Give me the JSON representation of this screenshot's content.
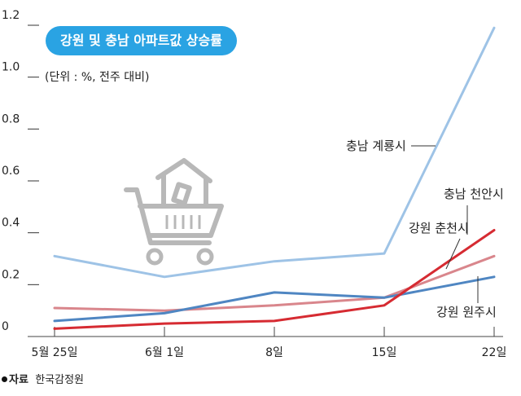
{
  "title": "강원 및 충남 아파트값 상승률",
  "unit_note": "(단위 : %, 전주 대비)",
  "source": {
    "label": "자료",
    "text": "한국감정원"
  },
  "cart_icon": "shopping-cart-with-house",
  "chart_data": {
    "type": "line",
    "x": [
      "5월 25일",
      "6월 1일",
      "8일",
      "15일",
      "22일"
    ],
    "y_ticks": [
      "0",
      "0.2",
      "0.4",
      "0.6",
      "0.8",
      "1.0",
      "1.2"
    ],
    "ylim": [
      0,
      1.2
    ],
    "grid": false,
    "series": [
      {
        "name": "충남 계룡시",
        "color": "#9ec3e6",
        "values": [
          0.31,
          0.23,
          0.29,
          0.32,
          1.19
        ]
      },
      {
        "name": "충남 천안시",
        "color": "#d62b32",
        "values": [
          0.03,
          0.05,
          0.06,
          0.12,
          0.41
        ]
      },
      {
        "name": "강원 춘천시",
        "color": "#d9868c",
        "values": [
          0.11,
          0.1,
          0.12,
          0.15,
          0.31
        ]
      },
      {
        "name": "강원 원주시",
        "color": "#4f86c2",
        "values": [
          0.06,
          0.09,
          0.17,
          0.15,
          0.23
        ]
      }
    ]
  }
}
